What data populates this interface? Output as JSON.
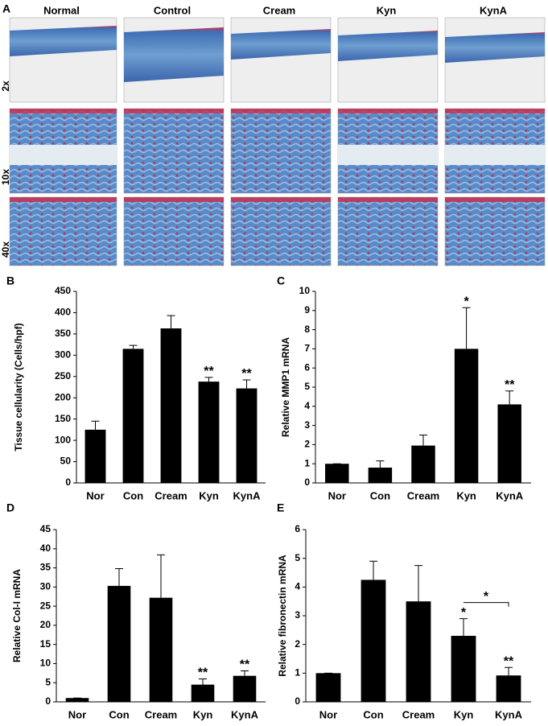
{
  "panel_a": {
    "label": "A",
    "columns": [
      "Normal",
      "Control",
      "Cream",
      "Kyn",
      "KynA"
    ],
    "rows": [
      "2x",
      "10x",
      "40x"
    ]
  },
  "chart_data": [
    {
      "type": "bar",
      "panel": "B",
      "ylabel": "Tissue cellularity (Cells/hpf)",
      "color": "#000000",
      "categories": [
        "Nor",
        "Con",
        "Cream",
        "Kyn",
        "KynA"
      ],
      "values": [
        125,
        315,
        363,
        238,
        222
      ],
      "errors": [
        20,
        8,
        30,
        10,
        20
      ],
      "annotations": [
        null,
        null,
        null,
        "**",
        "**"
      ],
      "ylim": [
        0,
        450
      ],
      "yticks": [
        0,
        50,
        100,
        150,
        200,
        250,
        300,
        350,
        400,
        450
      ]
    },
    {
      "type": "bar",
      "panel": "C",
      "ylabel": "Relative MMP1 mRNA",
      "color": "#000000",
      "categories": [
        "Nor",
        "Con",
        "Cream",
        "Kyn",
        "KynA"
      ],
      "values": [
        1,
        0.8,
        1.95,
        7.0,
        4.1
      ],
      "errors": [
        0,
        0.35,
        0.55,
        2.15,
        0.7
      ],
      "annotations": [
        null,
        null,
        null,
        "*",
        "**"
      ],
      "ylim": [
        0,
        10
      ],
      "yticks": [
        0,
        1,
        2,
        3,
        4,
        5,
        6,
        7,
        8,
        9,
        10
      ]
    },
    {
      "type": "bar",
      "panel": "D",
      "ylabel": "Relative Col-I mRNA",
      "color": "#000000",
      "categories": [
        "Nor",
        "Con",
        "Cream",
        "Kyn",
        "KynA"
      ],
      "values": [
        1,
        30.3,
        27.2,
        4.5,
        6.8
      ],
      "errors": [
        0,
        4.5,
        11.2,
        1.5,
        1.3
      ],
      "annotations": [
        null,
        null,
        null,
        "**",
        "**"
      ],
      "ylim": [
        0,
        45
      ],
      "yticks": [
        0,
        5,
        10,
        15,
        20,
        25,
        30,
        35,
        40,
        45
      ]
    },
    {
      "type": "bar",
      "panel": "E",
      "ylabel": "Relative fibronectin mRNA",
      "color": "#000000",
      "categories": [
        "Nor",
        "Con",
        "Cream",
        "Kyn",
        "KynA"
      ],
      "values": [
        1,
        4.25,
        3.5,
        2.3,
        0.92
      ],
      "errors": [
        0,
        0.65,
        1.25,
        0.6,
        0.28
      ],
      "annotations": [
        null,
        null,
        null,
        "*",
        "**"
      ],
      "bracket_label": "*",
      "ylim": [
        0,
        6
      ],
      "yticks": [
        0,
        1,
        2,
        3,
        4,
        5,
        6
      ]
    }
  ]
}
